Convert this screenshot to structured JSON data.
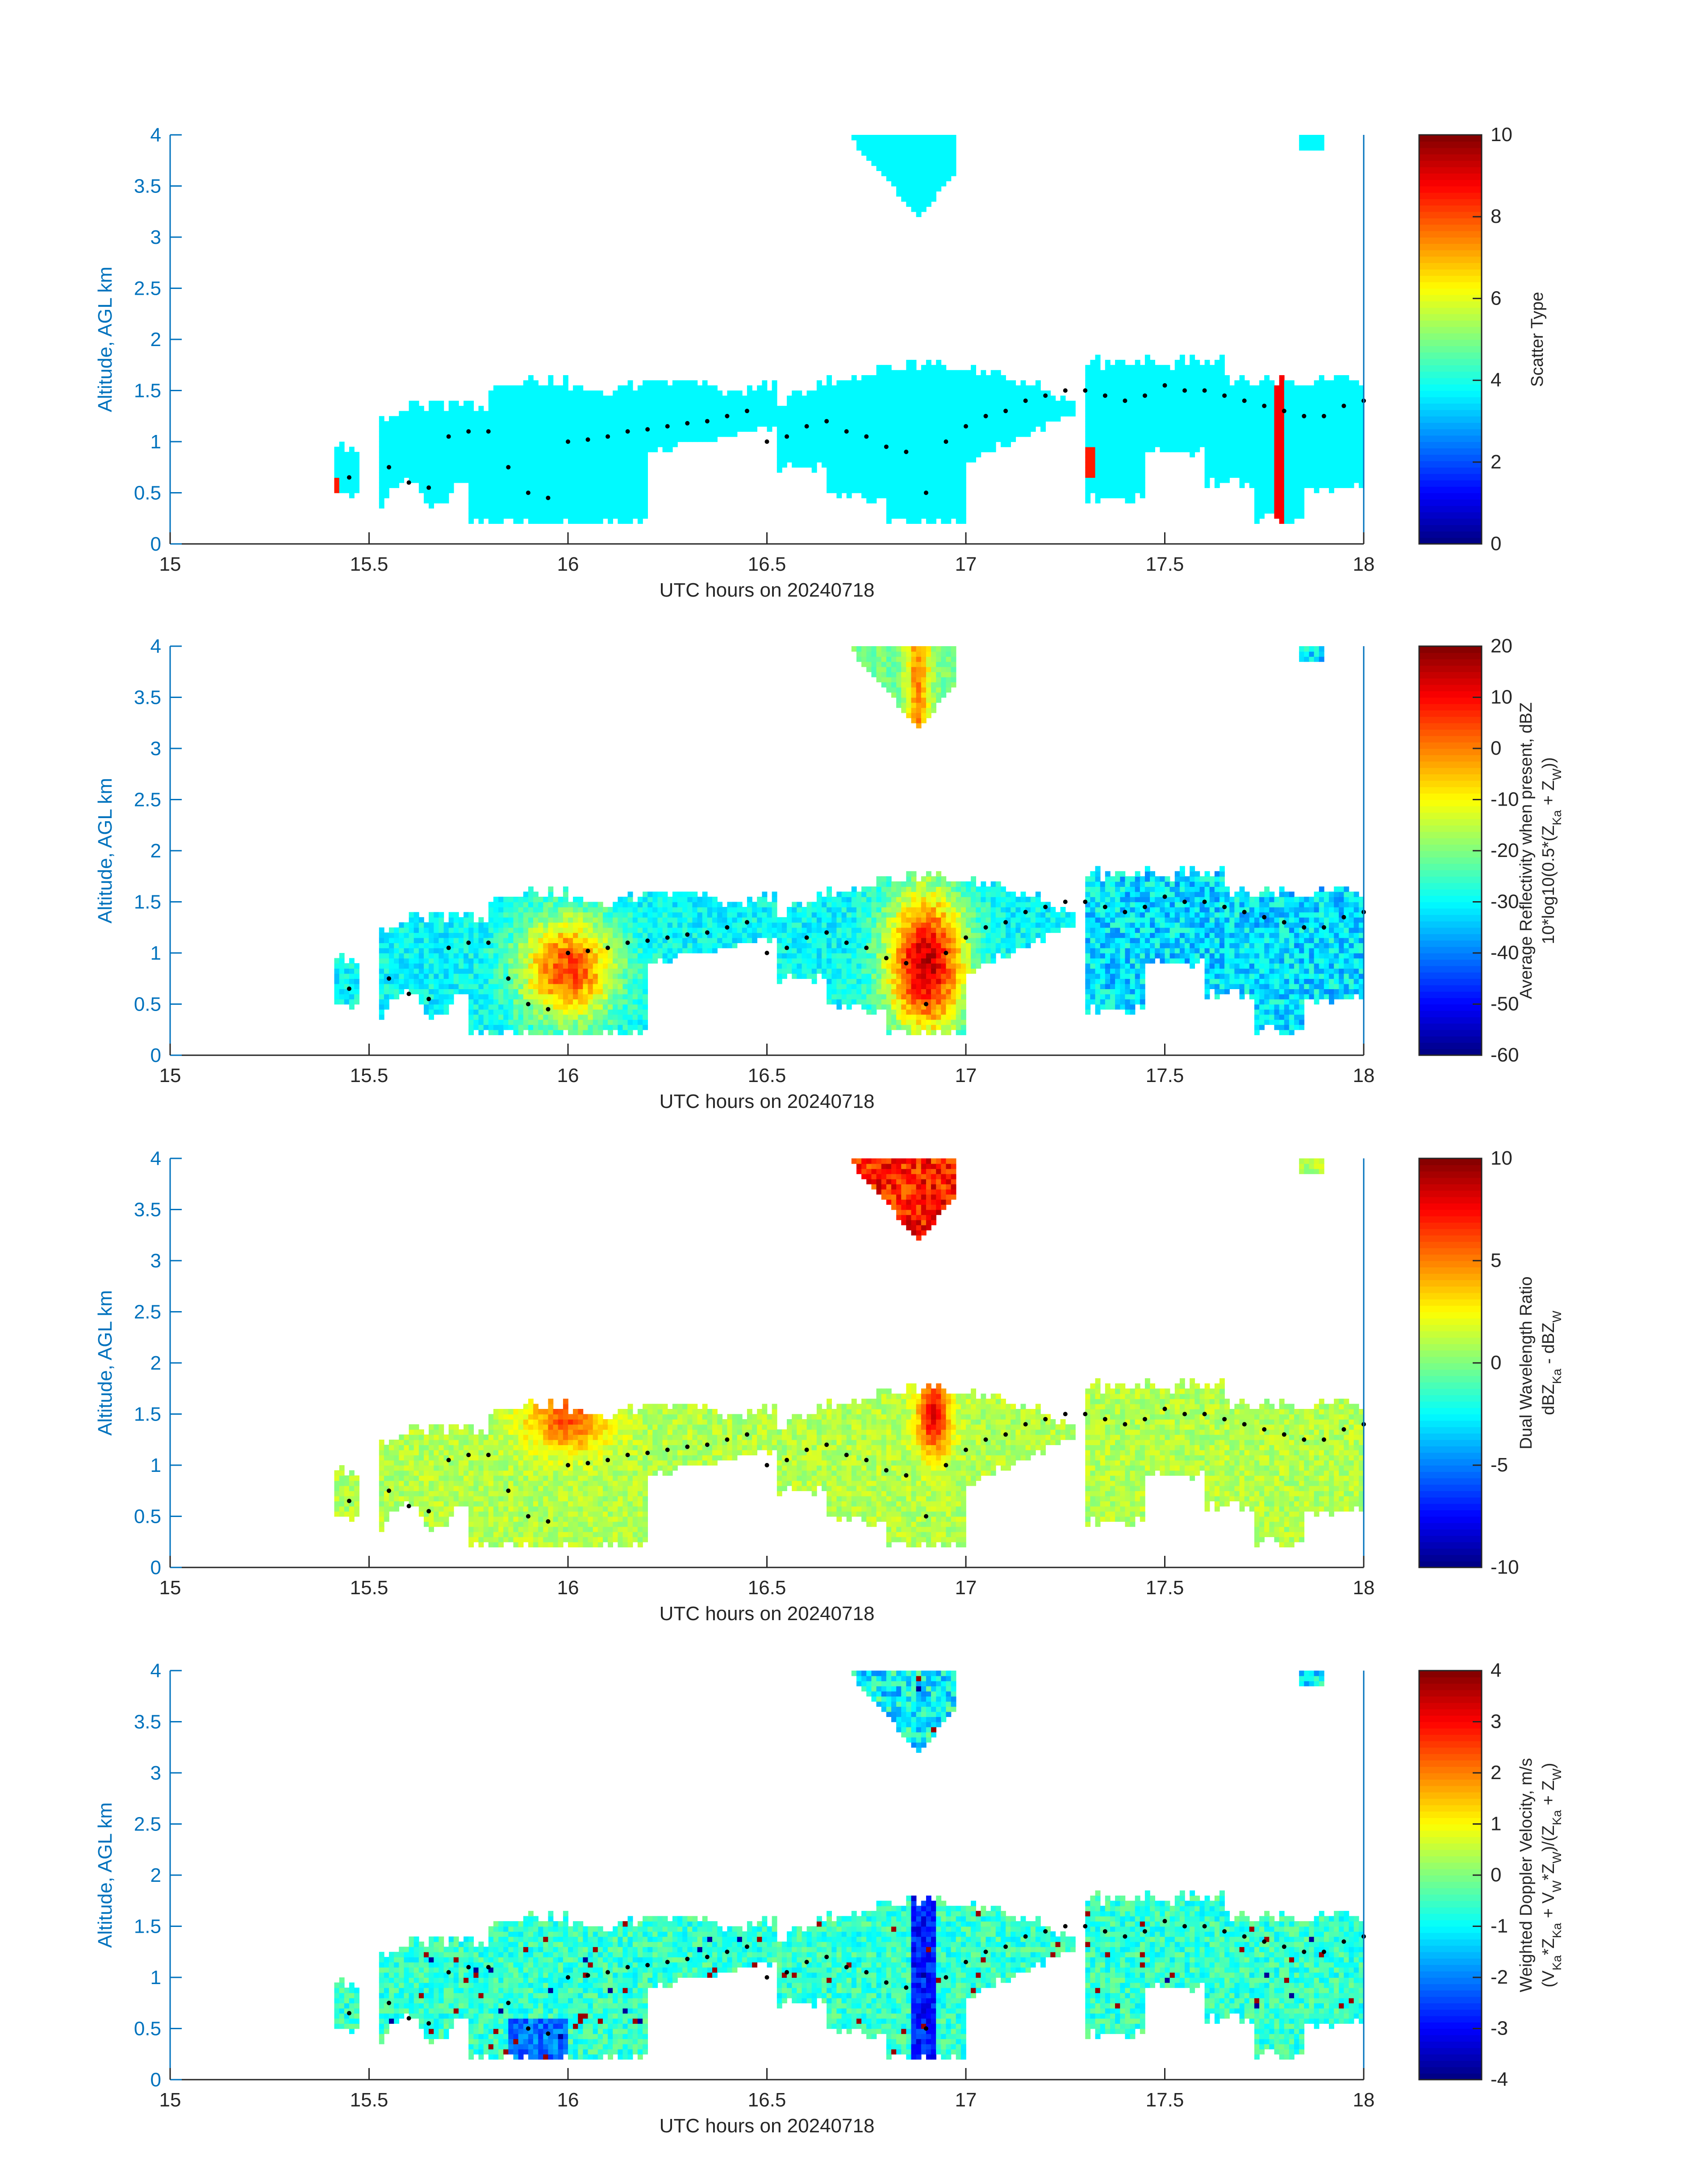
{
  "figure": {
    "shared": {
      "xlabel": "UTC hours on 20240718",
      "ylabel": "Altitude, AGL km",
      "x_ticks": [
        "15",
        "15.5",
        "16",
        "16.5",
        "17",
        "17.5",
        "18"
      ],
      "y_ticks": [
        "0",
        "0.5",
        "1",
        "1.5",
        "2",
        "2.5",
        "3",
        "3.5",
        "4"
      ],
      "xlim": [
        15,
        18
      ],
      "ylim": [
        0,
        4
      ],
      "axis_color": "#0072BD",
      "colormap": "jet"
    }
  },
  "chart_data": [
    {
      "type": "heatmap",
      "panel": 1,
      "xlabel": "UTC hours on 20240718",
      "ylabel": "Altitude, AGL km",
      "xlim": [
        15,
        18
      ],
      "ylim": [
        0,
        4
      ],
      "colorbar": {
        "label_lines": [
          "Scatter Type"
        ],
        "range": [
          0,
          10
        ],
        "ticks": [
          "0",
          "2",
          "4",
          "6",
          "8",
          "10"
        ]
      },
      "dominant_value": 3.7,
      "spike_value": 8.8,
      "cloud_layers": [
        {
          "x": [
            15.42,
            15.46
          ],
          "y_base": 0.5,
          "y_top": 0.95
        },
        {
          "x": [
            15.53,
            16.52
          ],
          "y_base": 0.2,
          "y_top": 1.55
        },
        {
          "x": [
            16.52,
            17.28
          ],
          "y_base": 0.2,
          "y_top": 1.8
        },
        {
          "x": [
            17.3,
            18.0
          ],
          "y_base": 0.2,
          "y_top": 1.8
        },
        {
          "x": [
            16.67,
            16.97
          ],
          "y_base": 3.2,
          "y_top": 4.0
        },
        {
          "x": [
            17.85,
            17.9
          ],
          "y_base": 3.85,
          "y_top": 4.0
        }
      ]
    },
    {
      "type": "heatmap",
      "panel": 2,
      "xlabel": "UTC hours on 20240718",
      "ylabel": "Altitude, AGL km",
      "xlim": [
        15,
        18
      ],
      "ylim": [
        0,
        4
      ],
      "colorbar": {
        "label_lines": [
          "Average Reflectivity when present, dBZ",
          "10*log10(0.5*(Z_Ka + Z_W))"
        ],
        "range": [
          -60,
          20
        ],
        "ticks": [
          "-60",
          "-50",
          "-40",
          "-30",
          "-20",
          "-10",
          "0",
          "10",
          "20"
        ]
      },
      "cores": [
        {
          "x_center": 16.0,
          "y_center": 0.85,
          "value": 0
        },
        {
          "x_center": 16.9,
          "y_center": 0.9,
          "value": 10
        }
      ]
    },
    {
      "type": "heatmap",
      "panel": 3,
      "xlabel": "UTC hours on 20240718",
      "ylabel": "Altitude, AGL km",
      "xlim": [
        15,
        18
      ],
      "ylim": [
        0,
        4
      ],
      "colorbar": {
        "label_lines": [
          "Dual Wavelength Ratio",
          "dBZ_Ka - dBZ_W"
        ],
        "range": [
          -10,
          10
        ],
        "ticks": [
          "-10",
          "-5",
          "0",
          "5",
          "10"
        ]
      }
    },
    {
      "type": "heatmap",
      "panel": 4,
      "xlabel": "UTC hours on 20240718",
      "ylabel": "Altitude, AGL km",
      "xlim": [
        15,
        18
      ],
      "ylim": [
        0,
        4
      ],
      "colorbar": {
        "label_lines": [
          "Weighted Doppler Velocity, m/s",
          "(V_Ka*Z_Ka + V_W*Z_W)/(Z_Ka + Z_W)"
        ],
        "range": [
          -4,
          4
        ],
        "ticks": [
          "-4",
          "-3",
          "-2",
          "-1",
          "0",
          "1",
          "2",
          "3",
          "4"
        ]
      }
    }
  ],
  "cloud_base_markers": {
    "x": [
      15.45,
      15.55,
      15.6,
      15.65,
      15.7,
      15.75,
      15.8,
      15.85,
      15.9,
      15.95,
      16.0,
      16.05,
      16.1,
      16.15,
      16.2,
      16.25,
      16.3,
      16.35,
      16.4,
      16.45,
      16.5,
      16.55,
      16.6,
      16.65,
      16.7,
      16.75,
      16.8,
      16.85,
      16.9,
      16.95,
      17.0,
      17.05,
      17.1,
      17.15,
      17.2,
      17.25,
      17.3,
      17.35,
      17.4,
      17.45,
      17.5,
      17.55,
      17.6,
      17.65,
      17.7,
      17.75,
      17.8,
      17.85,
      17.9,
      17.95,
      18.0
    ],
    "y": [
      0.65,
      0.75,
      0.6,
      0.55,
      1.05,
      1.1,
      1.1,
      0.75,
      0.5,
      0.45,
      1.0,
      1.02,
      1.05,
      1.1,
      1.12,
      1.15,
      1.18,
      1.2,
      1.25,
      1.3,
      1.0,
      1.05,
      1.15,
      1.2,
      1.1,
      1.05,
      0.95,
      0.9,
      0.5,
      1.0,
      1.15,
      1.25,
      1.3,
      1.4,
      1.45,
      1.5,
      1.5,
      1.45,
      1.4,
      1.45,
      1.55,
      1.5,
      1.5,
      1.45,
      1.4,
      1.35,
      1.3,
      1.25,
      1.25,
      1.35,
      1.4
    ]
  }
}
